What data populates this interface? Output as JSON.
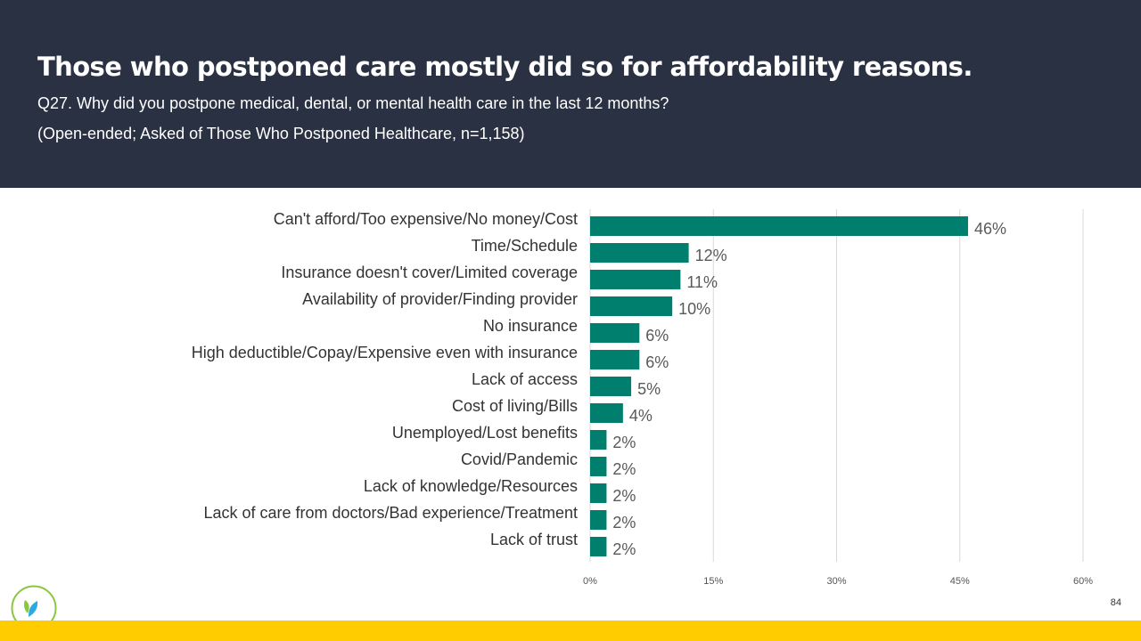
{
  "header": {
    "title": "Those who postponed care mostly did so for affordability reasons.",
    "question": "Q27. Why did you postpone medical, dental, or mental health care in the last 12 months?",
    "note": "(Open-ended;  Asked of Those Who Postponed Healthcare, n=1,158)"
  },
  "page_number": "84",
  "colors": {
    "header_bg": "#2a3142",
    "bar": "#007f6e",
    "footer": "#ffcc00"
  },
  "chart_data": {
    "type": "bar",
    "orientation": "horizontal",
    "categories": [
      "Can't afford/Too expensive/No money/Cost",
      "Time/Schedule",
      "Insurance doesn't cover/Limited coverage",
      "Availability of provider/Finding provider",
      "No insurance",
      "High deductible/Copay/Expensive even with insurance",
      "Lack of access",
      "Cost of living/Bills",
      "Unemployed/Lost benefits",
      "Covid/Pandemic",
      "Lack of knowledge/Resources",
      "Lack of care from doctors/Bad experience/Treatment",
      "Lack of trust"
    ],
    "values": [
      46,
      12,
      11,
      10,
      6,
      6,
      5,
      4,
      2,
      2,
      2,
      2,
      2
    ],
    "value_labels": [
      "46%",
      "12%",
      "11%",
      "10%",
      "6%",
      "6%",
      "5%",
      "4%",
      "2%",
      "2%",
      "2%",
      "2%",
      "2%"
    ],
    "xlim": [
      0,
      60
    ],
    "xticks": [
      0,
      15,
      30,
      45,
      60
    ],
    "xtick_labels": [
      "0%",
      "15%",
      "30%",
      "45%",
      "60%"
    ],
    "grid": true
  }
}
